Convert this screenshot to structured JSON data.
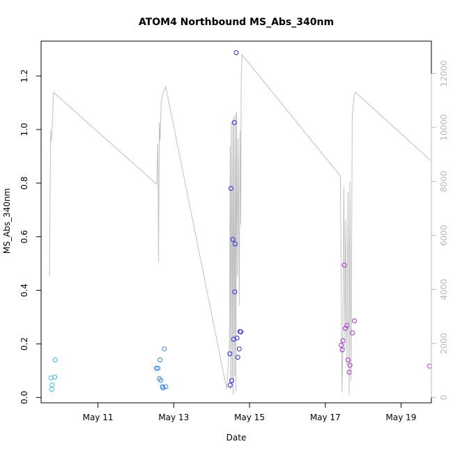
{
  "chart_data": {
    "type": "scatter",
    "title": "ATOM4 Northbound MS_Abs_340nm",
    "xlabel": "Date",
    "ylabel": "MS_Abs_340nm",
    "x_unit": "days since May 10",
    "xlim": [
      9.5,
      19.8
    ],
    "ylim": [
      -0.02,
      1.33
    ],
    "y2lim": [
      -200,
      13200
    ],
    "x_ticks": [
      {
        "value": 11,
        "label": "May 11"
      },
      {
        "value": 13,
        "label": "May 13"
      },
      {
        "value": 15,
        "label": "May 15"
      },
      {
        "value": 17,
        "label": "May 17"
      },
      {
        "value": 19,
        "label": "May 19"
      }
    ],
    "y_ticks": [
      {
        "value": 0.0,
        "label": "0.0"
      },
      {
        "value": 0.2,
        "label": "0.2"
      },
      {
        "value": 0.4,
        "label": "0.4"
      },
      {
        "value": 0.6,
        "label": "0.6"
      },
      {
        "value": 0.8,
        "label": "0.8"
      },
      {
        "value": 1.0,
        "label": "1.0"
      },
      {
        "value": 1.2,
        "label": "1.2"
      }
    ],
    "y2_ticks": [
      {
        "value": 0,
        "label": "0"
      },
      {
        "value": 2000,
        "label": "2000"
      },
      {
        "value": 4000,
        "label": "4000"
      },
      {
        "value": 6000,
        "label": "6000"
      },
      {
        "value": 8000,
        "label": "8000"
      },
      {
        "value": 10000,
        "label": "10000"
      },
      {
        "value": 12000,
        "label": "12000"
      }
    ],
    "points": [
      {
        "x": 9.76,
        "y": 0.073,
        "color": "#3db8ea"
      },
      {
        "x": 9.78,
        "y": 0.03,
        "color": "#3db8ea"
      },
      {
        "x": 9.79,
        "y": 0.047,
        "color": "#3db8ea"
      },
      {
        "x": 9.86,
        "y": 0.076,
        "color": "#3db8ea"
      },
      {
        "x": 9.87,
        "y": 0.14,
        "color": "#3db8ea"
      },
      {
        "x": 12.54,
        "y": 0.109,
        "color": "#2f84e8"
      },
      {
        "x": 12.58,
        "y": 0.109,
        "color": "#2f84e8"
      },
      {
        "x": 12.62,
        "y": 0.07,
        "color": "#2f84e8"
      },
      {
        "x": 12.64,
        "y": 0.14,
        "color": "#2f84e8"
      },
      {
        "x": 12.66,
        "y": 0.064,
        "color": "#2f84e8"
      },
      {
        "x": 12.7,
        "y": 0.04,
        "color": "#2f84e8"
      },
      {
        "x": 12.72,
        "y": 0.036,
        "color": "#2f84e8"
      },
      {
        "x": 12.75,
        "y": 0.181,
        "color": "#2f84e8"
      },
      {
        "x": 12.79,
        "y": 0.04,
        "color": "#2f84e8"
      },
      {
        "x": 14.48,
        "y": 0.163,
        "color": "#2b2bd9"
      },
      {
        "x": 14.49,
        "y": 0.046,
        "color": "#2b2bd9"
      },
      {
        "x": 14.51,
        "y": 0.78,
        "color": "#2b2bd9"
      },
      {
        "x": 14.53,
        "y": 0.063,
        "color": "#2b2bd9"
      },
      {
        "x": 14.56,
        "y": 0.59,
        "color": "#2b2bd9"
      },
      {
        "x": 14.58,
        "y": 0.217,
        "color": "#2b2bd9"
      },
      {
        "x": 14.6,
        "y": 1.026,
        "color": "#2b2bd9"
      },
      {
        "x": 14.61,
        "y": 0.394,
        "color": "#2b2bd9"
      },
      {
        "x": 14.62,
        "y": 0.573,
        "color": "#2b2bd9"
      },
      {
        "x": 14.65,
        "y": 1.287,
        "color": "#2b2bd9"
      },
      {
        "x": 14.67,
        "y": 0.222,
        "color": "#2b2bd9"
      },
      {
        "x": 14.69,
        "y": 0.15,
        "color": "#2b2bd9"
      },
      {
        "x": 14.73,
        "y": 0.181,
        "color": "#2b2bd9"
      },
      {
        "x": 14.75,
        "y": 0.246,
        "color": "#2b2bd9"
      },
      {
        "x": 14.77,
        "y": 0.245,
        "color": "#2b2bd9"
      },
      {
        "x": 17.42,
        "y": 0.195,
        "color": "#a52dc8"
      },
      {
        "x": 17.45,
        "y": 0.178,
        "color": "#a52dc8"
      },
      {
        "x": 17.47,
        "y": 0.212,
        "color": "#a52dc8"
      },
      {
        "x": 17.5,
        "y": 0.494,
        "color": "#a52dc8"
      },
      {
        "x": 17.53,
        "y": 0.258,
        "color": "#a52dc8"
      },
      {
        "x": 17.57,
        "y": 0.269,
        "color": "#a52dc8"
      },
      {
        "x": 17.6,
        "y": 0.14,
        "color": "#a52dc8"
      },
      {
        "x": 17.63,
        "y": 0.094,
        "color": "#a52dc8"
      },
      {
        "x": 17.65,
        "y": 0.12,
        "color": "#a52dc8"
      },
      {
        "x": 17.72,
        "y": 0.241,
        "color": "#a52dc8"
      },
      {
        "x": 17.77,
        "y": 0.286,
        "color": "#a52dc8"
      },
      {
        "x": 19.75,
        "y": 0.117,
        "color": "#cc33c8"
      }
    ],
    "line_color": "#c0c0c0",
    "line": [
      [
        9.72,
        4480
      ],
      [
        9.75,
        9900
      ],
      [
        9.76,
        9500
      ],
      [
        9.78,
        9600
      ],
      [
        9.83,
        11300
      ],
      [
        12.55,
        7900
      ],
      [
        12.58,
        9400
      ],
      [
        12.6,
        5000
      ],
      [
        12.62,
        10200
      ],
      [
        12.64,
        9500
      ],
      [
        12.67,
        10900
      ],
      [
        12.71,
        11250
      ],
      [
        12.79,
        11500
      ],
      [
        14.4,
        300
      ],
      [
        14.47,
        2000
      ],
      [
        14.49,
        9300
      ],
      [
        14.5,
        300
      ],
      [
        14.52,
        10200
      ],
      [
        14.54,
        400
      ],
      [
        14.56,
        10300
      ],
      [
        14.57,
        100
      ],
      [
        14.59,
        10400
      ],
      [
        14.61,
        800
      ],
      [
        14.63,
        10500
      ],
      [
        14.64,
        200
      ],
      [
        14.66,
        10600
      ],
      [
        14.68,
        4500
      ],
      [
        14.7,
        9600
      ],
      [
        14.73,
        3400
      ],
      [
        14.75,
        9900
      ],
      [
        14.77,
        6400
      ],
      [
        14.78,
        11800
      ],
      [
        14.8,
        12700
      ],
      [
        17.4,
        8200
      ],
      [
        17.44,
        200
      ],
      [
        17.46,
        1500
      ],
      [
        17.49,
        7800
      ],
      [
        17.52,
        1800
      ],
      [
        17.54,
        6600
      ],
      [
        17.57,
        1200
      ],
      [
        17.6,
        7600
      ],
      [
        17.63,
        100
      ],
      [
        17.65,
        8000
      ],
      [
        17.68,
        600
      ],
      [
        17.71,
        10400
      ],
      [
        17.76,
        11200
      ],
      [
        17.8,
        11300
      ],
      [
        19.78,
        8780
      ]
    ]
  }
}
